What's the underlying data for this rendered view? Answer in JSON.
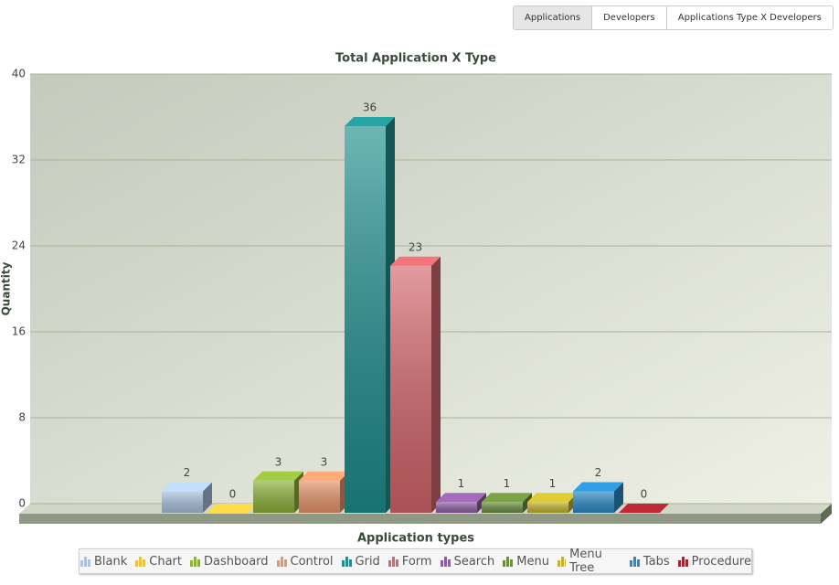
{
  "tabs": [
    "Applications",
    "Developers",
    "Applications Type X Developers"
  ],
  "chart_data": {
    "type": "bar3d",
    "title": "Total Application X Type",
    "y_label": "Quantity",
    "x_label": "Application types",
    "ylim": [
      0,
      40
    ],
    "yticks": [
      0,
      8,
      16,
      24,
      32,
      40
    ],
    "grid": true,
    "series": [
      {
        "name": "Blank",
        "color": "#a9c2dd",
        "values": [
          2
        ]
      },
      {
        "name": "Chart",
        "color": "#f0c040",
        "values": [
          0
        ]
      },
      {
        "name": "Dashboard",
        "color": "#8cb23a",
        "values": [
          3
        ]
      },
      {
        "name": "Control",
        "color": "#e8956a",
        "values": [
          3
        ]
      },
      {
        "name": "Grid",
        "color": "#1f8f8f",
        "values": [
          36
        ]
      },
      {
        "name": "Form",
        "color": "#d5666c",
        "values": [
          23
        ]
      },
      {
        "name": "Search",
        "color": "#8e5ea2",
        "values": [
          1
        ]
      },
      {
        "name": "Menu",
        "color": "#6b8e3f",
        "values": [
          1
        ]
      },
      {
        "name": "Menu Tree",
        "color": "#c2b22e",
        "values": [
          1
        ]
      },
      {
        "name": "Tabs",
        "color": "#2a8ac8",
        "values": [
          2
        ]
      },
      {
        "name": "Procedure",
        "color": "#a8232e",
        "values": [
          0
        ]
      }
    ]
  }
}
